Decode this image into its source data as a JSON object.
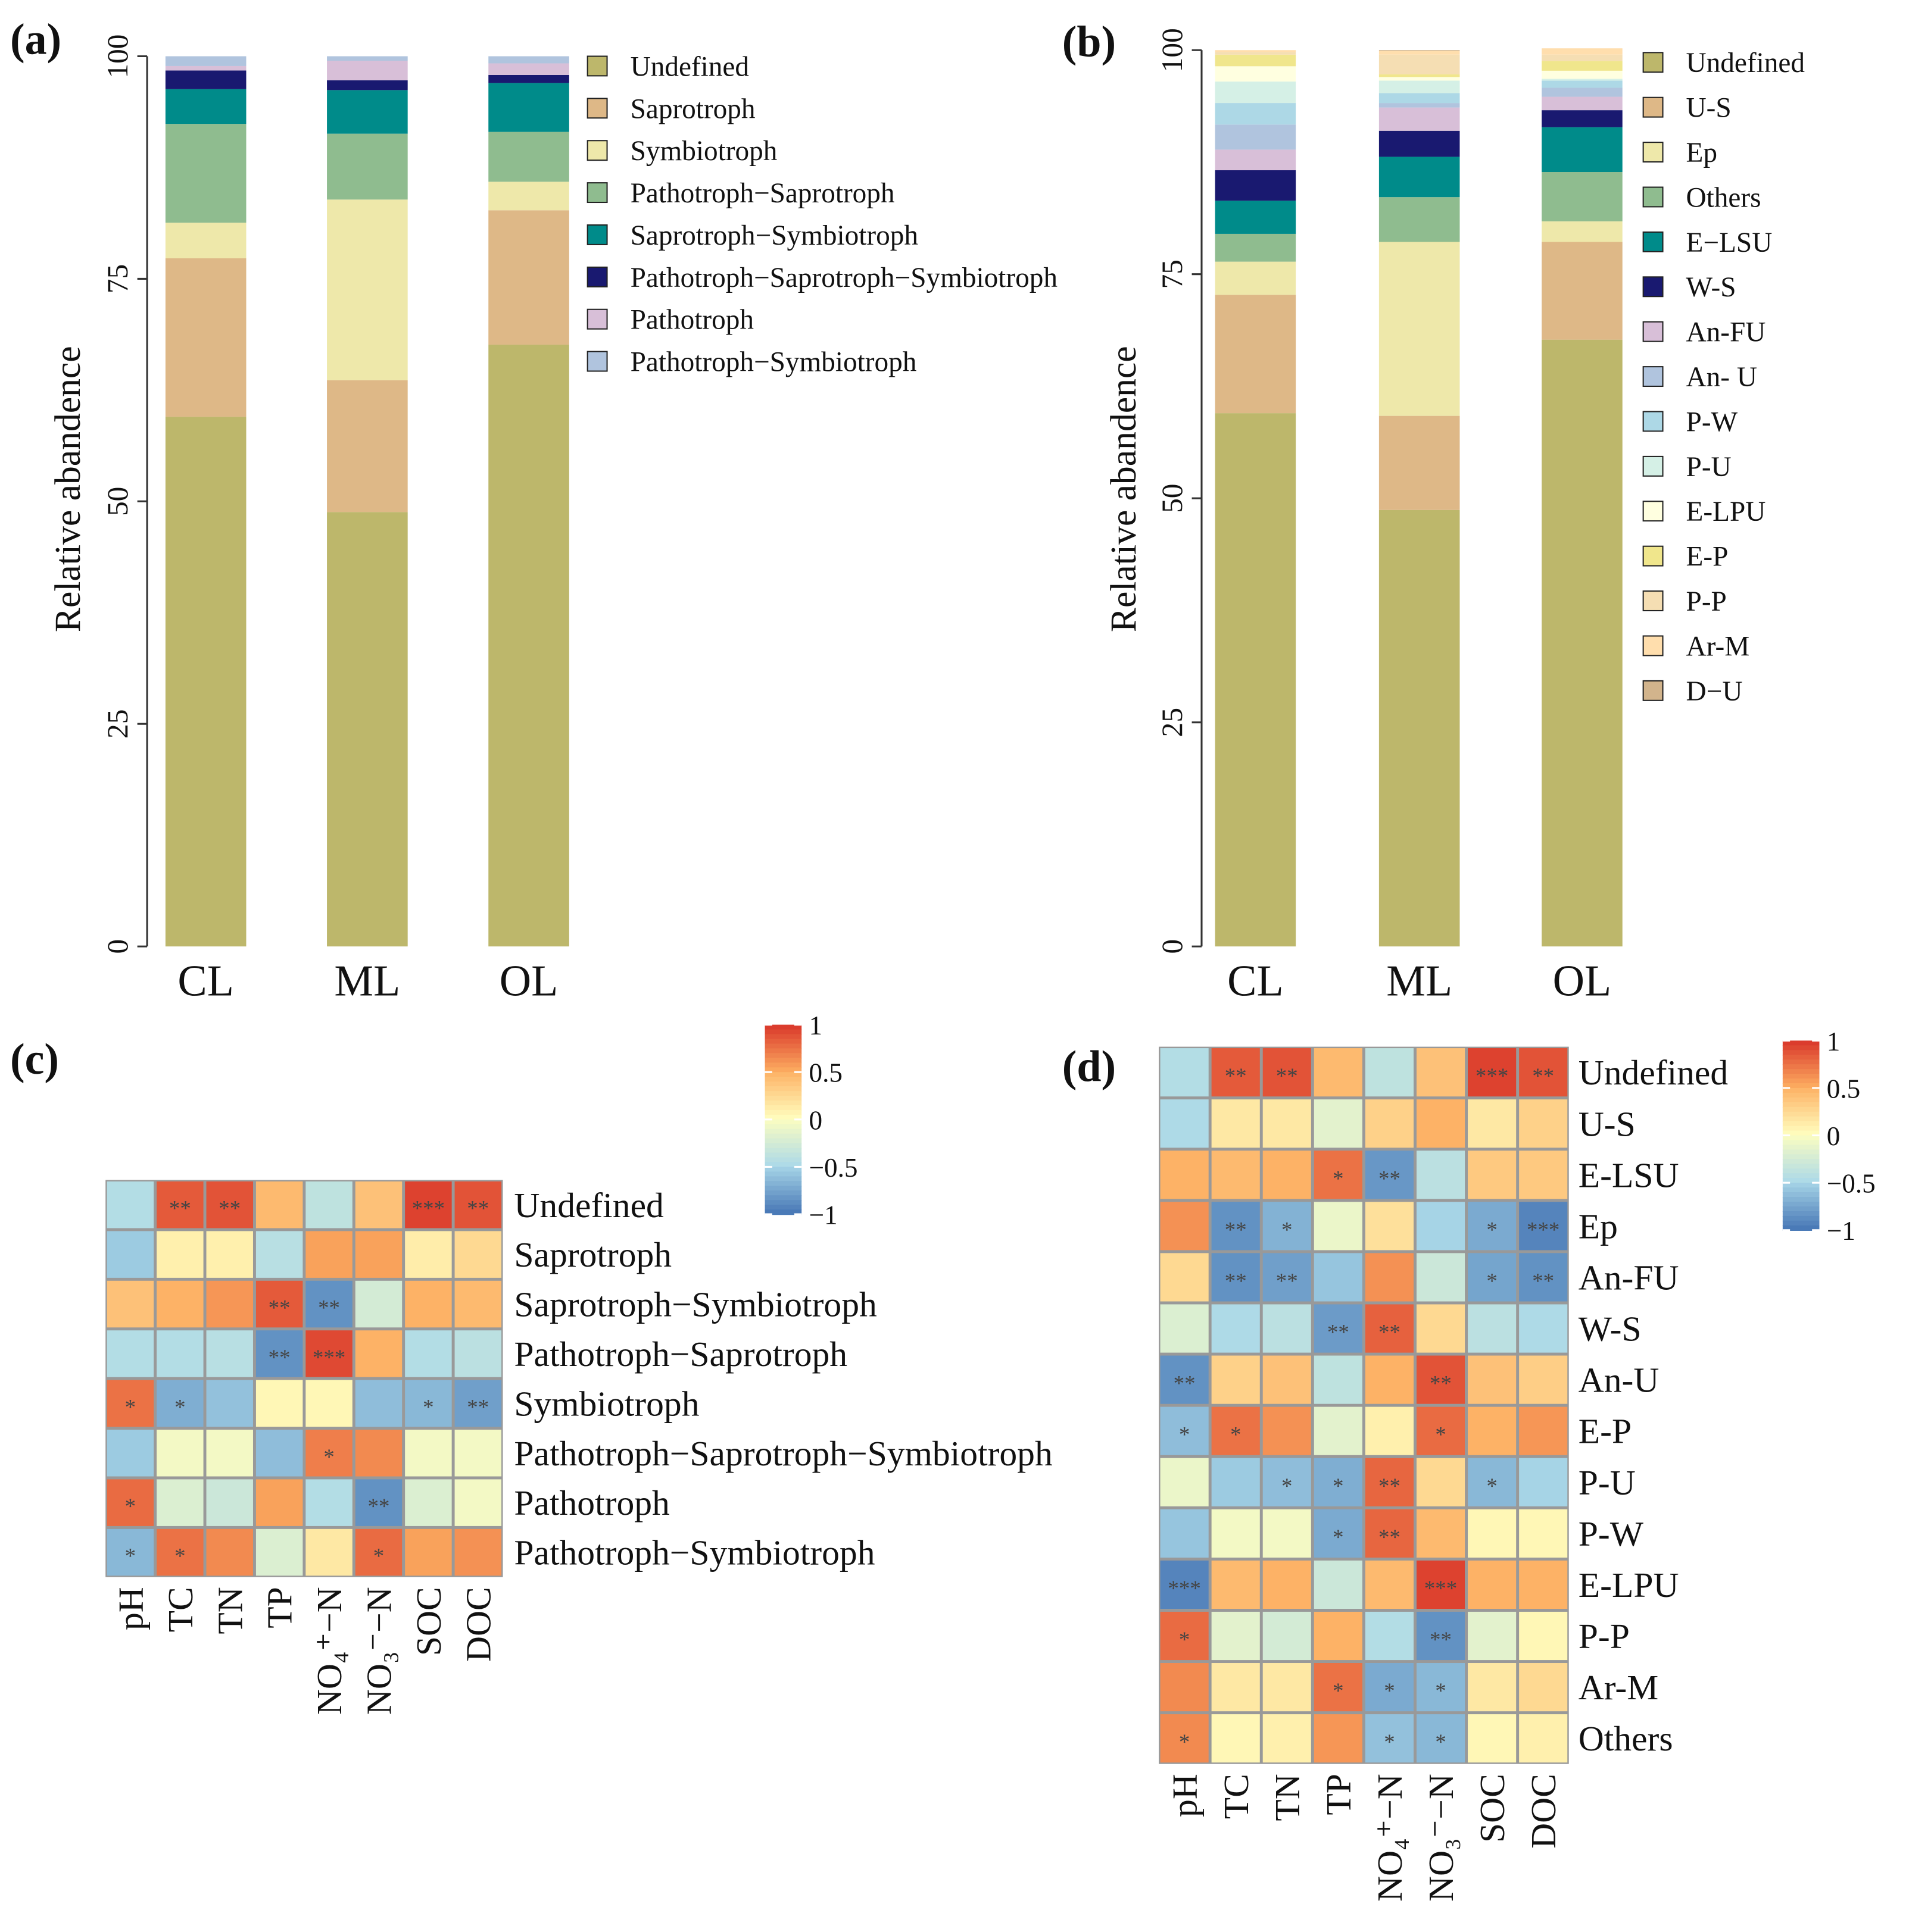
{
  "panels": {
    "a": "(a)",
    "b": "(b)",
    "c": "(c)",
    "d": "(d)"
  },
  "chart_data": [
    {
      "id": "a",
      "type": "bar",
      "stacked": true,
      "title": "",
      "xlabel": "",
      "ylabel": "Relative abandence",
      "ylim": [
        0,
        100
      ],
      "yticks": [
        0,
        25,
        50,
        75,
        100
      ],
      "categories": [
        "CL",
        "ML",
        "OL"
      ],
      "legend_position": "right",
      "series": [
        {
          "name": "Undefined",
          "color": "#bdb76b",
          "values": [
            59.5,
            48.8,
            67.6
          ]
        },
        {
          "name": "Saprotroph",
          "color": "#deb887",
          "values": [
            17.8,
            14.8,
            15.1
          ]
        },
        {
          "name": "Symbiotroph",
          "color": "#eee8aa",
          "values": [
            4.0,
            20.3,
            3.2
          ]
        },
        {
          "name": "Pathotroph−Saprotroph",
          "color": "#8fbc8f",
          "values": [
            11.1,
            7.4,
            5.6
          ]
        },
        {
          "name": "Saprotroph−Symbiotroph",
          "color": "#008b8a",
          "values": [
            3.9,
            4.9,
            5.5
          ]
        },
        {
          "name": "Pathotroph−Saprotroph−Symbiotroph",
          "color": "#191970",
          "values": [
            2.1,
            1.1,
            0.9
          ]
        },
        {
          "name": "Pathotroph",
          "color": "#d8bfd8",
          "values": [
            0.5,
            2.2,
            1.3
          ]
        },
        {
          "name": "Pathotroph−Symbiotroph",
          "color": "#b0c4de",
          "values": [
            1.1,
            0.5,
            0.8
          ]
        }
      ]
    },
    {
      "id": "b",
      "type": "bar",
      "stacked": true,
      "title": "",
      "xlabel": "",
      "ylabel": "Relative abandence",
      "ylim": [
        0,
        100
      ],
      "yticks": [
        0,
        25,
        50,
        75,
        100
      ],
      "categories": [
        "CL",
        "ML",
        "OL"
      ],
      "legend_position": "right",
      "series": [
        {
          "name": "Undefined",
          "color": "#bdb76b",
          "values": [
            59.5,
            48.7,
            67.7
          ]
        },
        {
          "name": "U-S",
          "color": "#deb887",
          "values": [
            13.2,
            10.5,
            10.9
          ]
        },
        {
          "name": "Ep",
          "color": "#eee8aa",
          "values": [
            3.7,
            19.4,
            2.3
          ]
        },
        {
          "name": "Others",
          "color": "#8fbc8f",
          "values": [
            3.1,
            5.0,
            5.5
          ]
        },
        {
          "name": "E−LSU",
          "color": "#008b8a",
          "values": [
            3.7,
            4.5,
            5.0
          ]
        },
        {
          "name": "W-S",
          "color": "#191970",
          "values": [
            3.4,
            2.9,
            1.9
          ]
        },
        {
          "name": "An-FU",
          "color": "#d8bfd8",
          "values": [
            2.3,
            2.6,
            1.5
          ]
        },
        {
          "name": "An- U",
          "color": "#b0c4de",
          "values": [
            2.8,
            0.5,
            1.0
          ]
        },
        {
          "name": "P-W",
          "color": "#add8e6",
          "values": [
            2.4,
            1.1,
            0.8
          ]
        },
        {
          "name": "P-U",
          "color": "#d5f0e6",
          "values": [
            2.4,
            1.4,
            0.2
          ]
        },
        {
          "name": "E-LPU",
          "color": "#ffffe0",
          "values": [
            1.7,
            0.4,
            0.9
          ]
        },
        {
          "name": "E-P",
          "color": "#f0e68c",
          "values": [
            1.3,
            0.3,
            1.1
          ]
        },
        {
          "name": "P-P",
          "color": "#f5deb3",
          "values": [
            0.3,
            2.2,
            0.7
          ]
        },
        {
          "name": "Ar-M",
          "color": "#ffdead",
          "values": [
            0.2,
            0.4,
            0.7
          ]
        },
        {
          "name": "D−U",
          "color": "#d2b48c",
          "values": [
            0.0,
            0.1,
            0.0
          ]
        }
      ]
    },
    {
      "id": "c",
      "type": "heatmap",
      "columns": [
        "pH",
        "TC",
        "TN",
        "TP",
        "NO₄⁺−N",
        "NO₃⁻−N",
        "SOC",
        "DOC"
      ],
      "rows": [
        "Undefined",
        "Saprotroph",
        "Saprotroph−Symbiotroph",
        "Pathotroph−Saprotroph",
        "Symbiotroph",
        "Pathotroph−Saprotroph−Symbiotroph",
        "Pathotroph",
        "Pathotroph−Symbiotroph"
      ],
      "values": [
        [
          -0.45,
          0.85,
          0.88,
          0.45,
          -0.38,
          0.4,
          0.95,
          0.88
        ],
        [
          -0.55,
          0.1,
          0.1,
          -0.42,
          0.55,
          0.55,
          0.12,
          0.25
        ],
        [
          0.4,
          0.5,
          0.6,
          0.85,
          -0.85,
          -0.25,
          0.5,
          0.45
        ],
        [
          -0.45,
          -0.45,
          -0.42,
          -0.85,
          0.92,
          0.5,
          -0.45,
          -0.4
        ],
        [
          0.75,
          -0.7,
          -0.6,
          0.05,
          0.05,
          -0.62,
          -0.65,
          -0.78
        ],
        [
          -0.55,
          -0.05,
          -0.05,
          -0.62,
          0.7,
          0.65,
          -0.05,
          -0.05
        ],
        [
          0.78,
          -0.2,
          -0.3,
          0.55,
          -0.45,
          -0.85,
          -0.2,
          -0.05
        ],
        [
          -0.65,
          0.75,
          0.65,
          -0.2,
          0.15,
          0.78,
          0.55,
          0.62
        ]
      ],
      "significance": [
        [
          "",
          "**",
          "**",
          "",
          "",
          "",
          "***",
          "**"
        ],
        [
          "",
          "",
          "",
          "",
          "",
          "",
          "",
          ""
        ],
        [
          "",
          "",
          "",
          "**",
          "**",
          "",
          "",
          ""
        ],
        [
          "",
          "",
          "",
          "**",
          "***",
          "",
          "",
          ""
        ],
        [
          "*",
          "*",
          "",
          "",
          "",
          "",
          "*",
          "**"
        ],
        [
          "",
          "",
          "",
          "",
          "*",
          "",
          "",
          ""
        ],
        [
          "*",
          "",
          "",
          "",
          "",
          "**",
          "",
          ""
        ],
        [
          "*",
          "*",
          "",
          "",
          "",
          "*",
          "",
          ""
        ]
      ],
      "colorbar": {
        "range": [
          -1,
          1
        ],
        "ticks": [
          "1",
          "0.5",
          "0",
          "−0.5",
          "−1"
        ]
      }
    },
    {
      "id": "d",
      "type": "heatmap",
      "columns": [
        "pH",
        "TC",
        "TN",
        "TP",
        "NO₄⁺−N",
        "NO₃⁻−N",
        "SOC",
        "DOC"
      ],
      "rows": [
        "Undefined",
        "U-S",
        "E-LSU",
        "Ep",
        "An-FU",
        "W-S",
        "An-U",
        "E-P",
        "P-U",
        "P-W",
        "E-LPU",
        "P-P",
        "Ar-M",
        "Others"
      ],
      "values": [
        [
          -0.45,
          0.85,
          0.88,
          0.45,
          -0.38,
          0.4,
          0.95,
          0.88
        ],
        [
          -0.48,
          0.15,
          0.15,
          -0.15,
          0.3,
          0.5,
          0.15,
          0.3
        ],
        [
          0.5,
          0.45,
          0.5,
          0.75,
          -0.82,
          -0.4,
          0.35,
          0.35
        ],
        [
          0.62,
          -0.85,
          -0.68,
          -0.1,
          0.2,
          -0.5,
          -0.72,
          -0.92
        ],
        [
          0.25,
          -0.85,
          -0.78,
          -0.58,
          0.62,
          -0.3,
          -0.75,
          -0.85
        ],
        [
          -0.2,
          -0.48,
          -0.4,
          -0.8,
          0.82,
          0.25,
          -0.4,
          -0.48
        ],
        [
          -0.85,
          0.3,
          0.4,
          -0.38,
          0.5,
          0.88,
          0.4,
          0.32
        ],
        [
          -0.62,
          0.75,
          0.62,
          -0.15,
          0.1,
          0.78,
          0.5,
          0.6
        ],
        [
          -0.1,
          -0.55,
          -0.62,
          -0.7,
          0.8,
          0.25,
          -0.65,
          -0.5
        ],
        [
          -0.58,
          -0.05,
          -0.05,
          -0.72,
          0.8,
          0.45,
          0.05,
          0.05
        ],
        [
          -0.92,
          0.45,
          0.5,
          -0.3,
          0.45,
          0.95,
          0.5,
          0.5
        ],
        [
          0.78,
          -0.15,
          -0.25,
          0.5,
          -0.45,
          -0.85,
          -0.15,
          0.05
        ],
        [
          0.65,
          0.15,
          0.15,
          0.75,
          -0.72,
          -0.65,
          0.15,
          0.25
        ],
        [
          0.65,
          0.05,
          0.1,
          0.6,
          -0.6,
          -0.65,
          0.05,
          0.1
        ]
      ],
      "significance": [
        [
          "",
          "**",
          "**",
          "",
          "",
          "",
          "***",
          "**"
        ],
        [
          "",
          "",
          "",
          "",
          "",
          "",
          "",
          ""
        ],
        [
          "",
          "",
          "",
          "*",
          "**",
          "",
          "",
          ""
        ],
        [
          "",
          "**",
          "*",
          "",
          "",
          "",
          "*",
          "***"
        ],
        [
          "",
          "**",
          "**",
          "",
          "",
          "",
          "*",
          "**"
        ],
        [
          "",
          "",
          "",
          "**",
          "**",
          "",
          "",
          ""
        ],
        [
          "**",
          "",
          "",
          "",
          "",
          "**",
          "",
          ""
        ],
        [
          "*",
          "*",
          "",
          "",
          "",
          "*",
          "",
          ""
        ],
        [
          "",
          "",
          "*",
          "*",
          "**",
          "",
          "*",
          ""
        ],
        [
          "",
          "",
          "",
          "*",
          "**",
          "",
          "",
          ""
        ],
        [
          "***",
          "",
          "",
          "",
          "",
          "***",
          "",
          ""
        ],
        [
          "*",
          "",
          "",
          "",
          "",
          "**",
          "",
          ""
        ],
        [
          "",
          "",
          "",
          "*",
          "*",
          "*",
          "",
          ""
        ],
        [
          "*",
          "",
          "",
          "",
          "*",
          "*",
          "",
          ""
        ]
      ],
      "colorbar": {
        "range": [
          -1,
          1
        ],
        "ticks": [
          "1",
          "0.5",
          "0",
          "−0.5",
          "−1"
        ]
      }
    }
  ]
}
